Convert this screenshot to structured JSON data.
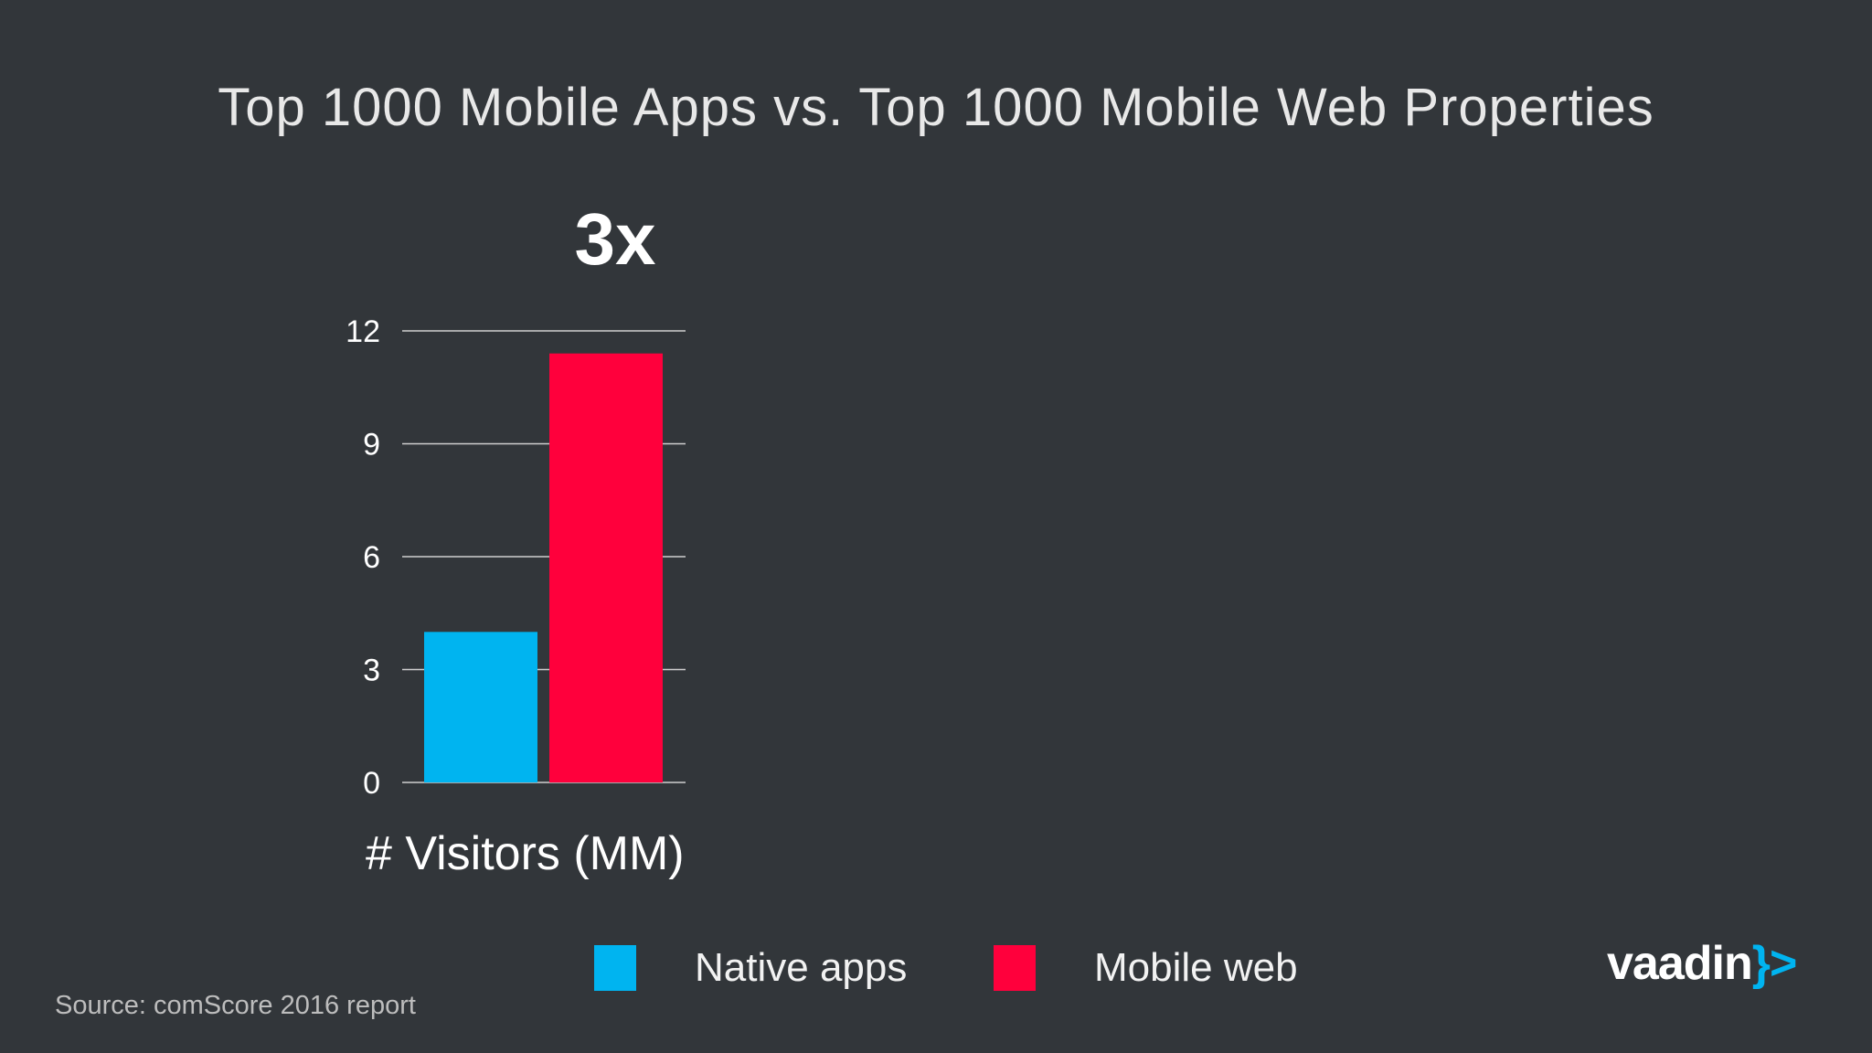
{
  "slide": {
    "title": "Top 1000 Mobile Apps vs. Top 1000 Mobile Web Properties",
    "callout": "3x",
    "source": "Source: comScore 2016 report",
    "logo_text": "vaadin",
    "logo_bracket": "}>"
  },
  "colors": {
    "background": "#32363a",
    "native_apps": "#00b4f0",
    "mobile_web": "#ff003c",
    "gridline": "#cfcfcf",
    "logo_accent": "#00b4f0"
  },
  "legend": [
    {
      "label": "Native apps",
      "color": "#00b4f0"
    },
    {
      "label": "Mobile web",
      "color": "#ff003c"
    }
  ],
  "chart_data": {
    "type": "bar",
    "title": "Top 1000 Mobile Apps vs. Top 1000 Mobile Web Properties",
    "ylabel": "# Visitors (MM)",
    "xlabel": "",
    "ylim": [
      0,
      12
    ],
    "yticks": [
      0,
      3,
      6,
      9,
      12
    ],
    "grid": true,
    "legend_position": "bottom",
    "categories": [
      ""
    ],
    "series": [
      {
        "name": "Native apps",
        "values": [
          4
        ],
        "color": "#00b4f0"
      },
      {
        "name": "Mobile web",
        "values": [
          11.4
        ],
        "color": "#ff003c"
      }
    ]
  }
}
